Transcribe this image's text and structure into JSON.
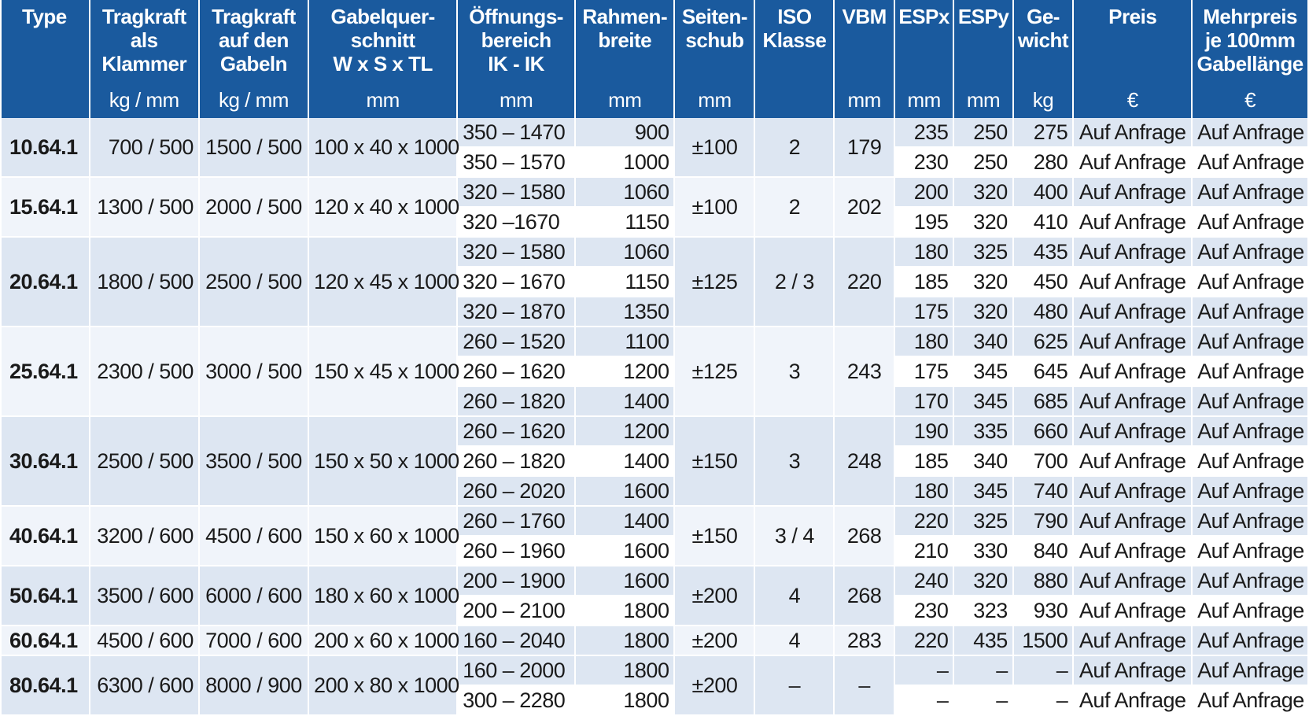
{
  "headers": [
    {
      "lines": [
        "Type"
      ],
      "unit": ""
    },
    {
      "lines": [
        "Tragkraft",
        "als",
        "Klammer"
      ],
      "unit": "kg / mm"
    },
    {
      "lines": [
        "Tragkraft",
        "auf den",
        "Gabeln"
      ],
      "unit": "kg / mm"
    },
    {
      "lines": [
        "Gabelquer-",
        "schnitt",
        "W x S x TL"
      ],
      "unit": "mm"
    },
    {
      "lines": [
        "Öffnungs-",
        "bereich",
        "IK - IK"
      ],
      "unit": "mm"
    },
    {
      "lines": [
        "Rahmen-",
        "breite"
      ],
      "unit": "mm"
    },
    {
      "lines": [
        "Seiten-",
        "schub"
      ],
      "unit": "mm"
    },
    {
      "lines": [
        "ISO",
        "Klasse"
      ],
      "unit": ""
    },
    {
      "lines": [
        "VBM"
      ],
      "unit": "mm"
    },
    {
      "lines": [
        "ESPx"
      ],
      "unit": "mm"
    },
    {
      "lines": [
        "ESPy"
      ],
      "unit": "mm"
    },
    {
      "lines": [
        "Ge-",
        "wicht"
      ],
      "unit": "kg"
    },
    {
      "lines": [
        "Preis"
      ],
      "unit": "€"
    },
    {
      "lines": [
        "Mehrpreis",
        "je 100mm",
        "Gabellänge"
      ],
      "unit": "€"
    }
  ],
  "groups": [
    {
      "type": "10.64.1",
      "klammer": "700 / 500",
      "gabeln": "1500 / 500",
      "querschnitt": "100 x 40 x 1000",
      "seitenschub": "±100",
      "iso": "2",
      "vbm": "179",
      "rows": [
        {
          "oeffnung": "350 – 1470",
          "rahmen": "900",
          "espx": "235",
          "espy": "250",
          "gewicht": "275",
          "preis": "Auf Anfrage",
          "mehrpreis": "Auf Anfrage"
        },
        {
          "oeffnung": "350 – 1570",
          "rahmen": "1000",
          "espx": "230",
          "espy": "250",
          "gewicht": "280",
          "preis": "Auf Anfrage",
          "mehrpreis": "Auf Anfrage"
        }
      ]
    },
    {
      "type": "15.64.1",
      "klammer": "1300 / 500",
      "gabeln": "2000 / 500",
      "querschnitt": "120 x 40 x 1000",
      "seitenschub": "±100",
      "iso": "2",
      "vbm": "202",
      "rows": [
        {
          "oeffnung": "320 – 1580",
          "rahmen": "1060",
          "espx": "200",
          "espy": "320",
          "gewicht": "400",
          "preis": "Auf Anfrage",
          "mehrpreis": "Auf Anfrage"
        },
        {
          "oeffnung": "320  –1670",
          "rahmen": "1150",
          "espx": "195",
          "espy": "320",
          "gewicht": "410",
          "preis": "Auf Anfrage",
          "mehrpreis": "Auf Anfrage"
        }
      ]
    },
    {
      "type": "20.64.1",
      "klammer": "1800 / 500",
      "gabeln": "2500 / 500",
      "querschnitt": "120 x 45 x 1000",
      "seitenschub": "±125",
      "iso": "2  /  3",
      "vbm": "220",
      "rows": [
        {
          "oeffnung": "320 – 1580",
          "rahmen": "1060",
          "espx": "180",
          "espy": "325",
          "gewicht": "435",
          "preis": "Auf Anfrage",
          "mehrpreis": "Auf Anfrage"
        },
        {
          "oeffnung": "320 – 1670",
          "rahmen": "1150",
          "espx": "185",
          "espy": "320",
          "gewicht": "450",
          "preis": "Auf Anfrage",
          "mehrpreis": "Auf Anfrage"
        },
        {
          "oeffnung": "320 – 1870",
          "rahmen": "1350",
          "espx": "175",
          "espy": "320",
          "gewicht": "480",
          "preis": "Auf Anfrage",
          "mehrpreis": "Auf Anfrage"
        }
      ]
    },
    {
      "type": "25.64.1",
      "klammer": "2300 / 500",
      "gabeln": "3000 / 500",
      "querschnitt": "150 x 45 x 1000",
      "seitenschub": "±125",
      "iso": "3",
      "vbm": "243",
      "rows": [
        {
          "oeffnung": "260 – 1520",
          "rahmen": "1100",
          "espx": "180",
          "espy": "340",
          "gewicht": "625",
          "preis": "Auf Anfrage",
          "mehrpreis": "Auf Anfrage"
        },
        {
          "oeffnung": "260 – 1620",
          "rahmen": "1200",
          "espx": "175",
          "espy": "345",
          "gewicht": "645",
          "preis": "Auf Anfrage",
          "mehrpreis": "Auf Anfrage"
        },
        {
          "oeffnung": "260 – 1820",
          "rahmen": "1400",
          "espx": "170",
          "espy": "345",
          "gewicht": "685",
          "preis": "Auf Anfrage",
          "mehrpreis": "Auf Anfrage"
        }
      ]
    },
    {
      "type": "30.64.1",
      "klammer": "2500 / 500",
      "gabeln": "3500 / 500",
      "querschnitt": "150 x 50 x 1000",
      "seitenschub": "±150",
      "iso": "3",
      "vbm": "248",
      "rows": [
        {
          "oeffnung": "260 – 1620",
          "rahmen": "1200",
          "espx": "190",
          "espy": "335",
          "gewicht": "660",
          "preis": "Auf Anfrage",
          "mehrpreis": "Auf Anfrage"
        },
        {
          "oeffnung": "260 – 1820",
          "rahmen": "1400",
          "espx": "185",
          "espy": "340",
          "gewicht": "700",
          "preis": "Auf Anfrage",
          "mehrpreis": "Auf Anfrage"
        },
        {
          "oeffnung": "260 – 2020",
          "rahmen": "1600",
          "espx": "180",
          "espy": "345",
          "gewicht": "740",
          "preis": "Auf Anfrage",
          "mehrpreis": "Auf Anfrage"
        }
      ]
    },
    {
      "type": "40.64.1",
      "klammer": "3200 / 600",
      "gabeln": "4500 / 600",
      "querschnitt": "150 x 60 x 1000",
      "seitenschub": "±150",
      "iso": "3  /  4",
      "vbm": "268",
      "rows": [
        {
          "oeffnung": "260 – 1760",
          "rahmen": "1400",
          "espx": "220",
          "espy": "325",
          "gewicht": "790",
          "preis": "Auf Anfrage",
          "mehrpreis": "Auf Anfrage"
        },
        {
          "oeffnung": "260 – 1960",
          "rahmen": "1600",
          "espx": "210",
          "espy": "330",
          "gewicht": "840",
          "preis": "Auf Anfrage",
          "mehrpreis": "Auf Anfrage"
        }
      ]
    },
    {
      "type": "50.64.1",
      "klammer": "3500 / 600",
      "gabeln": "6000 / 600",
      "querschnitt": "180 x 60 x 1000",
      "seitenschub": "±200",
      "iso": "4",
      "vbm": "268",
      "rows": [
        {
          "oeffnung": "200 – 1900",
          "rahmen": "1600",
          "espx": "240",
          "espy": "320",
          "gewicht": "880",
          "preis": "Auf Anfrage",
          "mehrpreis": "Auf Anfrage"
        },
        {
          "oeffnung": "200 – 2100",
          "rahmen": "1800",
          "espx": "230",
          "espy": "323",
          "gewicht": "930",
          "preis": "Auf Anfrage",
          "mehrpreis": "Auf Anfrage"
        }
      ]
    },
    {
      "type": "60.64.1",
      "klammer": "4500 / 600",
      "gabeln": "7000 / 600",
      "querschnitt": "200 x 60 x 1000",
      "seitenschub": "±200",
      "iso": "4",
      "vbm": "283",
      "rows": [
        {
          "oeffnung": "160 – 2040",
          "rahmen": "1800",
          "espx": "220",
          "espy": "435",
          "gewicht": "1500",
          "preis": "Auf Anfrage",
          "mehrpreis": "Auf Anfrage"
        }
      ]
    },
    {
      "type": "80.64.1",
      "klammer": "6300 / 600",
      "gabeln": "8000 / 900",
      "querschnitt": "200 x 80 x 1000",
      "seitenschub": "±200",
      "iso": "–",
      "vbm": "–",
      "rows": [
        {
          "oeffnung": "160 – 2000",
          "rahmen": "1800",
          "espx": "–",
          "espy": "–",
          "gewicht": "–",
          "preis": "Auf Anfrage",
          "mehrpreis": "Auf Anfrage"
        },
        {
          "oeffnung": "300 – 2280",
          "rahmen": "1800",
          "espx": "–",
          "espy": "–",
          "gewicht": "–",
          "preis": "Auf Anfrage",
          "mehrpreis": "Auf Anfrage"
        }
      ]
    }
  ]
}
